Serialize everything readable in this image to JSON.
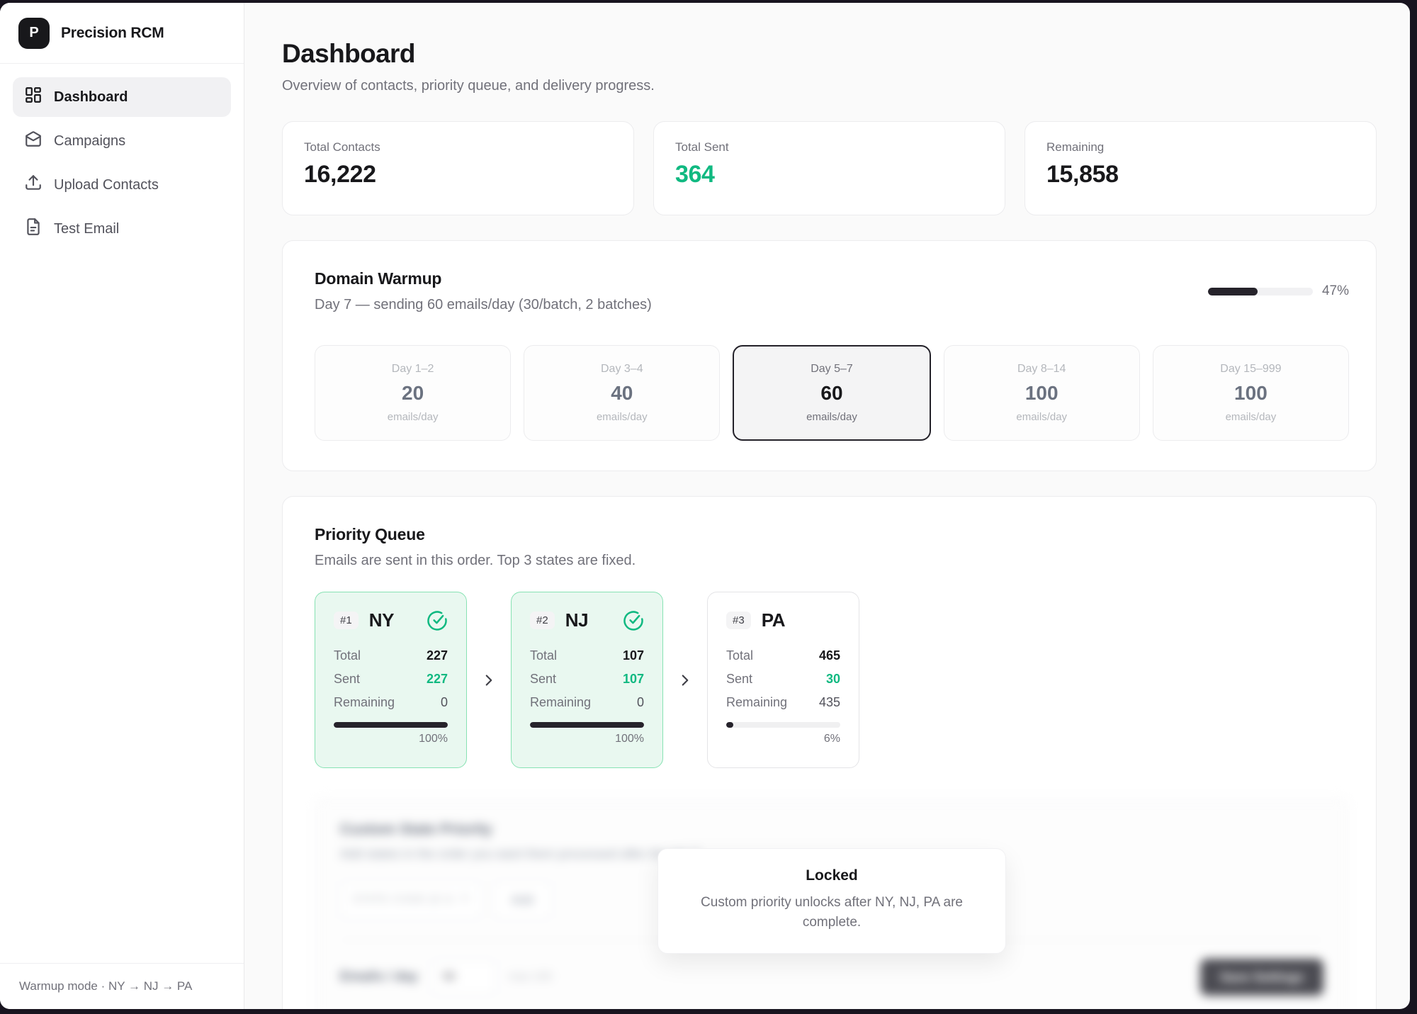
{
  "brand": {
    "logo_letter": "P",
    "name": "Precision RCM"
  },
  "sidebar": {
    "items": [
      {
        "label": "Dashboard",
        "icon": "dashboard-grid-icon",
        "active": true
      },
      {
        "label": "Campaigns",
        "icon": "envelope-icon",
        "active": false
      },
      {
        "label": "Upload Contacts",
        "icon": "upload-icon",
        "active": false
      },
      {
        "label": "Test Email",
        "icon": "document-icon",
        "active": false
      }
    ],
    "footer": "Warmup mode · NY → NJ → PA"
  },
  "header": {
    "title": "Dashboard",
    "subtitle": "Overview of contacts, priority queue, and delivery progress."
  },
  "stats": [
    {
      "label": "Total Contacts",
      "value": "16,222"
    },
    {
      "label": "Total Sent",
      "value": "364"
    },
    {
      "label": "Remaining",
      "value": "15,858"
    }
  ],
  "warmup": {
    "title": "Domain Warmup",
    "subtitle": "Day 7 — sending 60 emails/day (30/batch, 2 batches)",
    "progress_percent": 47,
    "progress_label": "47%",
    "stages": [
      {
        "day": "Day 1–2",
        "value": "20",
        "unit": "emails/day",
        "active": false
      },
      {
        "day": "Day 3–4",
        "value": "40",
        "unit": "emails/day",
        "active": false
      },
      {
        "day": "Day 5–7",
        "value": "60",
        "unit": "emails/day",
        "active": true
      },
      {
        "day": "Day 8–14",
        "value": "100",
        "unit": "emails/day",
        "active": false
      },
      {
        "day": "Day 15–999",
        "value": "100",
        "unit": "emails/day",
        "active": false
      }
    ]
  },
  "priority_queue": {
    "title": "Priority Queue",
    "subtitle": "Emails are sent in this order. Top 3 states are fixed.",
    "labels": {
      "total": "Total",
      "sent": "Sent",
      "remaining": "Remaining"
    },
    "states": [
      {
        "rank": "#1",
        "code": "NY",
        "total": "227",
        "sent": "227",
        "remaining": "0",
        "percent": 100,
        "percent_label": "100%",
        "complete": true
      },
      {
        "rank": "#2",
        "code": "NJ",
        "total": "107",
        "sent": "107",
        "remaining": "0",
        "percent": 100,
        "percent_label": "100%",
        "complete": true
      },
      {
        "rank": "#3",
        "code": "PA",
        "total": "465",
        "sent": "30",
        "remaining": "435",
        "percent": 6,
        "percent_label": "6%",
        "complete": false
      }
    ]
  },
  "custom_priority": {
    "title": "Custom State Priority",
    "subtitle": "Add states in the order you want them processed after the top 3",
    "state_input_placeholder": "STATE CODE (E.G. TX)",
    "add_button": "Add",
    "emails_per_day_label": "Emails / day",
    "emails_per_day_value": "50",
    "emails_per_day_hint": "max 100",
    "save_button": "Save Settings",
    "locked_overlay": {
      "title": "Locked",
      "message": "Custom priority unlocks after NY, NJ, PA are complete."
    }
  },
  "colors": {
    "accent_green": "#10b981",
    "green_card_bg": "#e9f8f0",
    "green_card_border": "#87e2b3",
    "dark": "#18181b",
    "progress_fill": "#26232b",
    "muted_text": "#71717a",
    "frame_bg": "#18141f"
  }
}
